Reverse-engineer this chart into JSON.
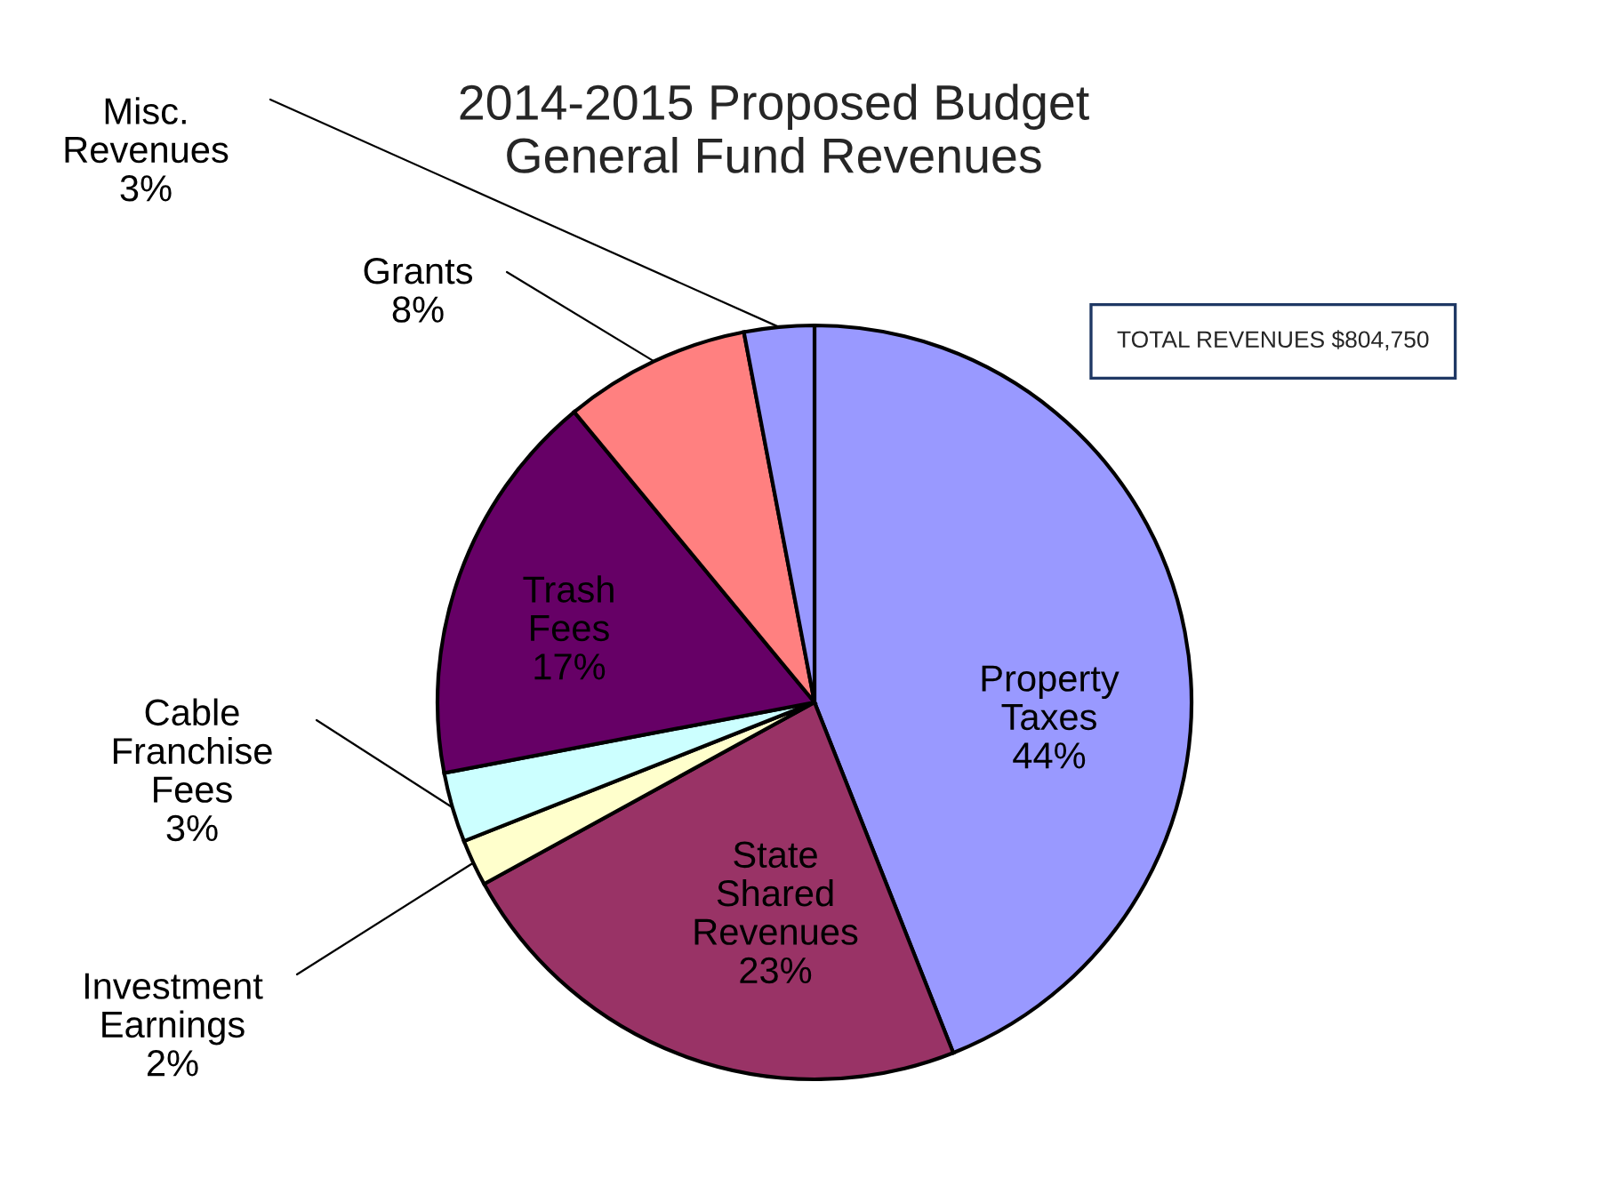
{
  "chart_data": {
    "type": "pie",
    "title": "2014-2015 Proposed Budget\nGeneral Fund Revenues",
    "categories": [
      "Property\nTaxes",
      "State\nShared\nRevenues",
      "Investment\nEarnings",
      "Cable\nFranchise\nFees",
      "Trash\nFees",
      "Grants",
      "Misc.\nRevenues"
    ],
    "values": [
      44,
      23,
      2,
      3,
      17,
      8,
      3
    ],
    "value_labels": [
      "44%",
      "23%",
      "2%",
      "3%",
      "17%",
      "8%",
      "3%"
    ],
    "colors": [
      "#9999ff",
      "#993366",
      "#ffffcc",
      "#ccffff",
      "#660066",
      "#ff8080",
      "#9999ff"
    ],
    "annotations": [
      "TOTAL REVENUES $804,750"
    ]
  }
}
